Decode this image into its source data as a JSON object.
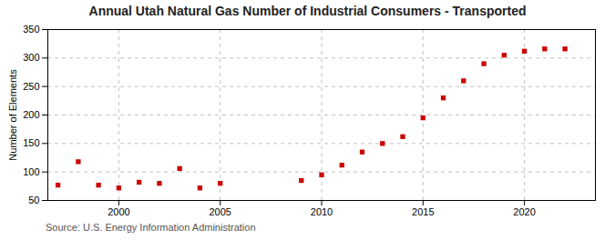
{
  "chart_data": {
    "type": "scatter",
    "title": "Annual Utah Natural Gas Number of Industrial Consumers - Transported",
    "ylabel": "Number of Elements",
    "source": "Source: U.S. Energy Information Administration",
    "x": [
      1997,
      1998,
      1999,
      2000,
      2001,
      2002,
      2003,
      2004,
      2005,
      2009,
      2010,
      2011,
      2012,
      2013,
      2014,
      2015,
      2016,
      2017,
      2018,
      2019,
      2020,
      2021,
      2022
    ],
    "values": [
      77,
      118,
      77,
      72,
      82,
      80,
      106,
      72,
      80,
      85,
      95,
      112,
      135,
      150,
      162,
      195,
      230,
      260,
      290,
      305,
      312,
      316,
      316
    ],
    "color": "#cc0000",
    "marker": "square",
    "xlim": [
      1996.5,
      2023.5
    ],
    "ylim": [
      50,
      350
    ],
    "xticks": [
      2000,
      2005,
      2010,
      2015,
      2020
    ],
    "yticks": [
      50,
      100,
      150,
      200,
      250,
      300,
      350
    ],
    "grid": true
  }
}
